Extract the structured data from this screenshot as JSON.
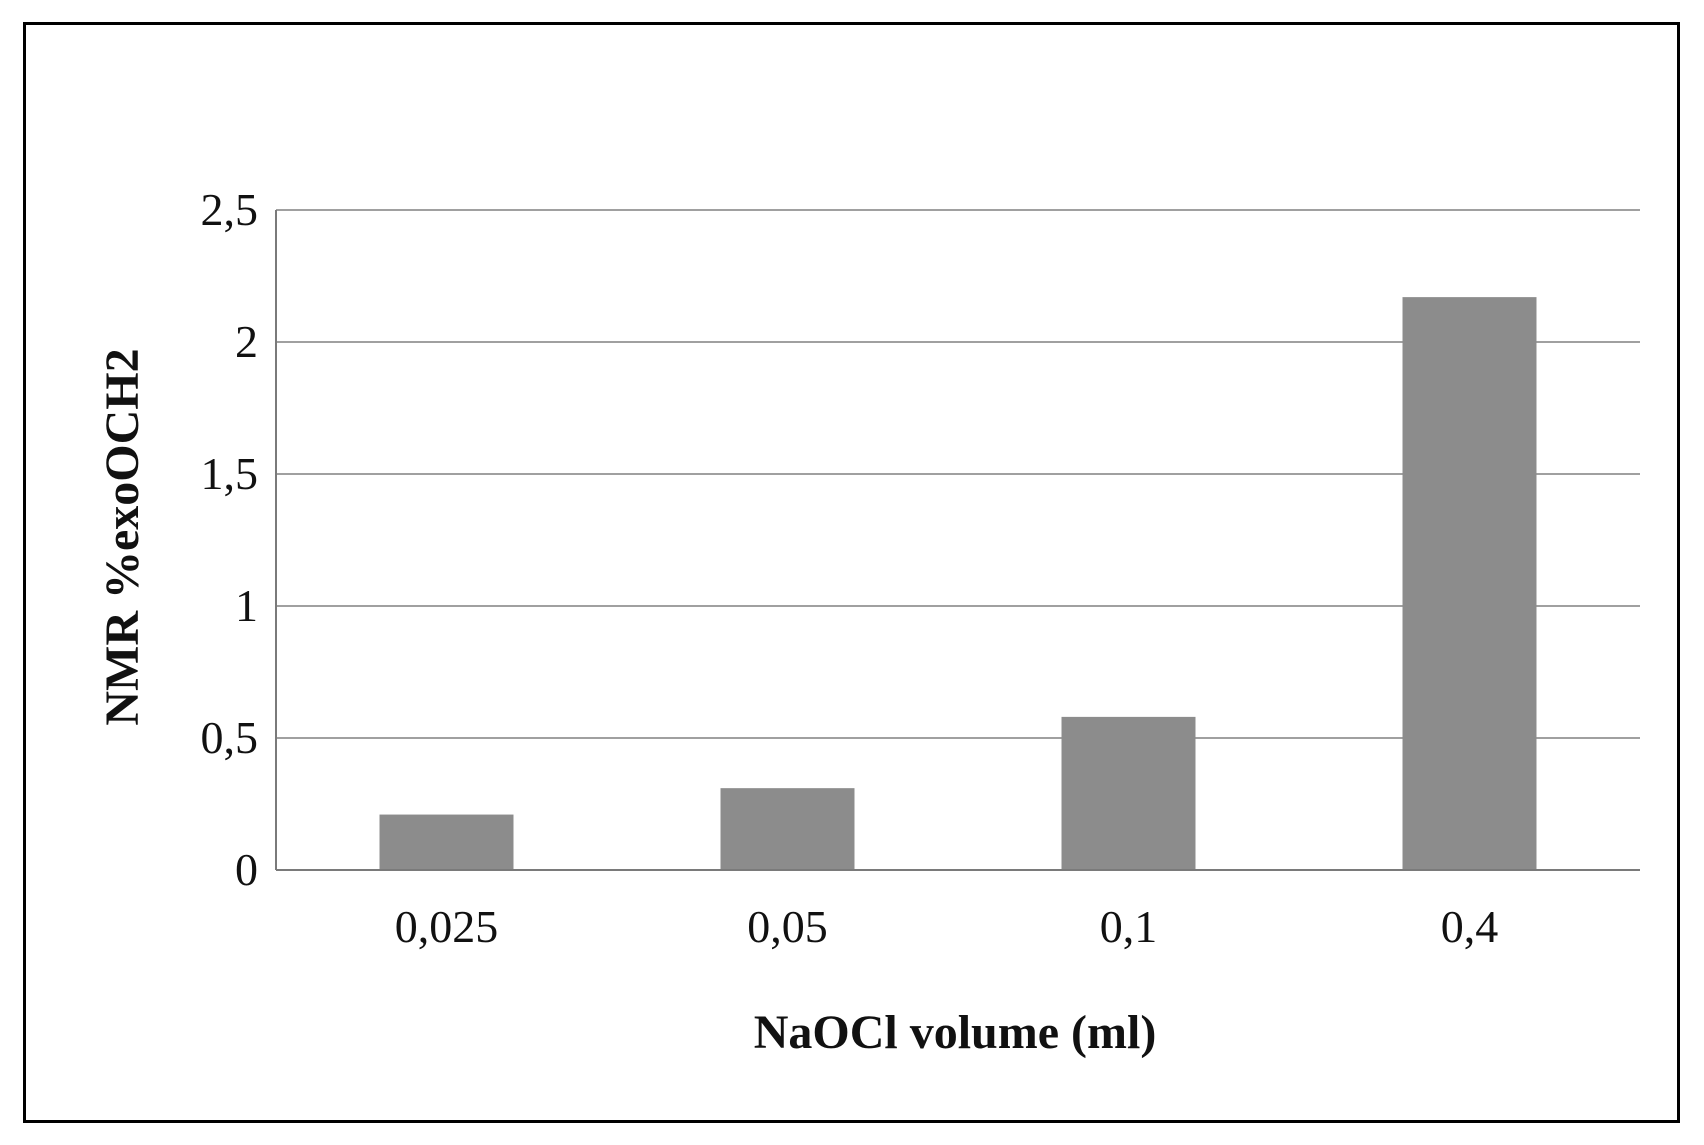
{
  "chart_data": {
    "type": "bar",
    "title": "",
    "xlabel": "NaOCl volume (ml)",
    "ylabel": "NMR %exoOCH2",
    "categories": [
      "0,025",
      "0,05",
      "0,1",
      "0,4"
    ],
    "values": [
      0.21,
      0.31,
      0.58,
      2.17
    ],
    "ylim": [
      0,
      2.5
    ],
    "yticks": [
      {
        "value": 0,
        "label": "0"
      },
      {
        "value": 0.5,
        "label": "0,5"
      },
      {
        "value": 1,
        "label": "1"
      },
      {
        "value": 1.5,
        "label": "1,5"
      },
      {
        "value": 2,
        "label": "2"
      },
      {
        "value": 2.5,
        "label": "2,5"
      }
    ],
    "grid": true,
    "legend": "none",
    "colors": {
      "bar": "#8c8c8c",
      "grid": "#a0a0a0",
      "frame": "#000000"
    }
  }
}
